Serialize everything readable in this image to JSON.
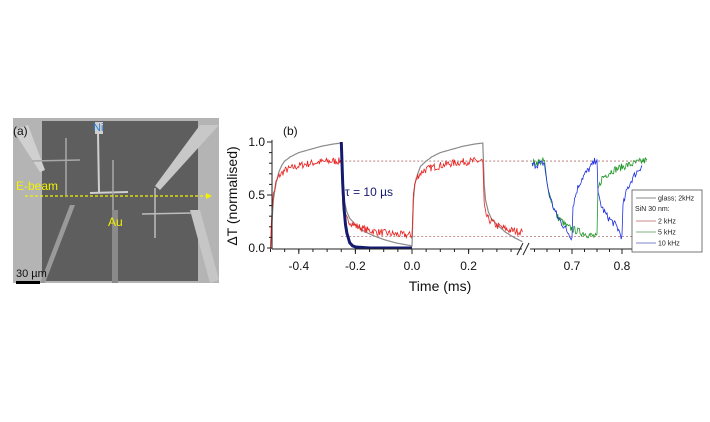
{
  "panel_a": {
    "label": "(a)",
    "ni_label": "Ni",
    "au_label": "Au",
    "ebeam_label": "E-beam",
    "scalebar_label": "30 µm",
    "colors": {
      "ni": "#2f7fd0",
      "annotation": "#f2f200"
    }
  },
  "chart_data": {
    "type": "line",
    "panel_label": "(b)",
    "xlabel": "Time (ms)",
    "ylabel": "ΔT (normalised)",
    "ylim": [
      0,
      1.0
    ],
    "x_segments": [
      [
        -0.5,
        0.39
      ],
      [
        0.62,
        0.85
      ]
    ],
    "axis_break": true,
    "yticks": [
      "0.0",
      "0.5",
      "1.0"
    ],
    "ytick_values": [
      0,
      0.5,
      1.0
    ],
    "xticks": [
      "-0.4",
      "-0.2",
      "0.0",
      "0.2",
      "0.7",
      "0.8"
    ],
    "xtick_values": [
      -0.4,
      -0.2,
      0.0,
      0.2,
      0.7,
      0.8
    ],
    "grid": false,
    "annotation": "τ = 10 µs",
    "reference_lines": [
      0.82,
      0.11
    ],
    "legend": {
      "placement": "right",
      "entries": [
        "glass; 2kHz",
        "2 kHz",
        "5 kHz",
        "10 kHz"
      ],
      "group_header": "SiN 30 nm:"
    },
    "series": [
      {
        "name": "glass; 2kHz",
        "color": "#8a8a8a",
        "segment": 0,
        "points": [
          [
            -0.5,
            0
          ],
          [
            -0.49,
            0.45
          ],
          [
            -0.48,
            0.62
          ],
          [
            -0.47,
            0.72
          ],
          [
            -0.46,
            0.78
          ],
          [
            -0.45,
            0.82
          ],
          [
            -0.43,
            0.86
          ],
          [
            -0.4,
            0.9
          ],
          [
            -0.36,
            0.93
          ],
          [
            -0.32,
            0.96
          ],
          [
            -0.28,
            0.98
          ],
          [
            -0.25,
            0.99
          ],
          [
            -0.245,
            0.6
          ],
          [
            -0.24,
            0.45
          ],
          [
            -0.23,
            0.34
          ],
          [
            -0.22,
            0.28
          ],
          [
            -0.2,
            0.22
          ],
          [
            -0.17,
            0.16
          ],
          [
            -0.14,
            0.12
          ],
          [
            -0.1,
            0.08
          ],
          [
            -0.06,
            0.05
          ],
          [
            -0.02,
            0.03
          ],
          [
            0,
            0.02
          ],
          [
            0.005,
            0.45
          ],
          [
            0.01,
            0.6
          ],
          [
            0.02,
            0.7
          ],
          [
            0.03,
            0.77
          ],
          [
            0.05,
            0.82
          ],
          [
            0.07,
            0.86
          ],
          [
            0.1,
            0.9
          ],
          [
            0.14,
            0.93
          ],
          [
            0.18,
            0.96
          ],
          [
            0.22,
            0.98
          ],
          [
            0.25,
            0.99
          ],
          [
            0.255,
            0.6
          ],
          [
            0.26,
            0.45
          ],
          [
            0.27,
            0.34
          ],
          [
            0.28,
            0.28
          ],
          [
            0.3,
            0.22
          ],
          [
            0.33,
            0.15
          ],
          [
            0.36,
            0.1
          ],
          [
            0.39,
            0.06
          ]
        ]
      },
      {
        "name": "2 kHz",
        "color": "#e8201c",
        "segment": 0,
        "points": [
          [
            -0.5,
            0.0
          ],
          [
            -0.495,
            0.35
          ],
          [
            -0.49,
            0.5
          ],
          [
            -0.48,
            0.62
          ],
          [
            -0.47,
            0.68
          ],
          [
            -0.45,
            0.73
          ],
          [
            -0.42,
            0.76
          ],
          [
            -0.38,
            0.79
          ],
          [
            -0.33,
            0.81
          ],
          [
            -0.28,
            0.82
          ],
          [
            -0.25,
            0.82
          ],
          [
            -0.245,
            0.4
          ],
          [
            -0.24,
            0.32
          ],
          [
            -0.23,
            0.27
          ],
          [
            -0.2,
            0.21
          ],
          [
            -0.16,
            0.17
          ],
          [
            -0.12,
            0.15
          ],
          [
            -0.06,
            0.13
          ],
          [
            0,
            0.12
          ],
          [
            0.005,
            0.5
          ],
          [
            0.01,
            0.6
          ],
          [
            0.02,
            0.68
          ],
          [
            0.04,
            0.73
          ],
          [
            0.07,
            0.76
          ],
          [
            0.12,
            0.79
          ],
          [
            0.17,
            0.81
          ],
          [
            0.22,
            0.82
          ],
          [
            0.25,
            0.82
          ],
          [
            0.255,
            0.4
          ],
          [
            0.26,
            0.32
          ],
          [
            0.27,
            0.27
          ],
          [
            0.3,
            0.21
          ],
          [
            0.34,
            0.17
          ],
          [
            0.39,
            0.15
          ]
        ]
      },
      {
        "name": "fit",
        "color": "#141a6e",
        "segment": 0,
        "points": [
          [
            -0.25,
            1
          ],
          [
            -0.245,
            0.61
          ],
          [
            -0.24,
            0.37
          ],
          [
            -0.235,
            0.22
          ],
          [
            -0.23,
            0.14
          ],
          [
            -0.22,
            0.05
          ],
          [
            -0.21,
            0.02
          ],
          [
            -0.2,
            0.01
          ],
          [
            -0.15,
            0
          ],
          [
            0,
            0
          ]
        ]
      },
      {
        "name": "5 kHz",
        "color": "#22962a",
        "segment": 1,
        "points": [
          [
            0.62,
            0.8
          ],
          [
            0.645,
            0.82
          ],
          [
            0.65,
            0.6
          ],
          [
            0.66,
            0.42
          ],
          [
            0.67,
            0.3
          ],
          [
            0.69,
            0.2
          ],
          [
            0.71,
            0.16
          ],
          [
            0.73,
            0.13
          ],
          [
            0.75,
            0.1
          ],
          [
            0.752,
            0.55
          ],
          [
            0.76,
            0.66
          ],
          [
            0.78,
            0.73
          ],
          [
            0.81,
            0.78
          ],
          [
            0.85,
            0.83
          ]
        ]
      },
      {
        "name": "10 kHz",
        "color": "#1e2ee0",
        "segment": 1,
        "points": [
          [
            0.62,
            0.78
          ],
          [
            0.645,
            0.8
          ],
          [
            0.65,
            0.6
          ],
          [
            0.66,
            0.42
          ],
          [
            0.67,
            0.3
          ],
          [
            0.69,
            0.16
          ],
          [
            0.7,
            0.1
          ],
          [
            0.702,
            0.4
          ],
          [
            0.71,
            0.55
          ],
          [
            0.72,
            0.66
          ],
          [
            0.74,
            0.78
          ],
          [
            0.75,
            0.85
          ],
          [
            0.752,
            0.5
          ],
          [
            0.76,
            0.38
          ],
          [
            0.77,
            0.3
          ],
          [
            0.79,
            0.2
          ],
          [
            0.8,
            0.1
          ],
          [
            0.802,
            0.4
          ],
          [
            0.81,
            0.55
          ],
          [
            0.82,
            0.65
          ],
          [
            0.83,
            0.72
          ],
          [
            0.84,
            0.78
          ]
        ]
      }
    ]
  }
}
